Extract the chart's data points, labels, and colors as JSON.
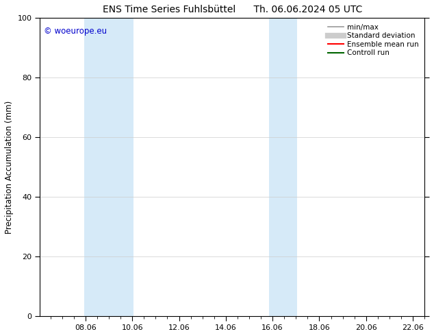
{
  "title_left": "ENS Time Series Fuhlsbüttel",
  "title_right": "Th. 06.06.2024 05 UTC",
  "ylabel": "Precipitation Accumulation (mm)",
  "watermark": "© woeurope.eu",
  "watermark_color": "#0000cc",
  "ylim": [
    0,
    100
  ],
  "xlim_start": 6.05,
  "xlim_end": 22.5,
  "xticks": [
    8.0,
    10.0,
    12.0,
    14.0,
    16.0,
    18.0,
    20.0,
    22.0
  ],
  "xticklabels": [
    "08.06",
    "10.06",
    "12.06",
    "14.06",
    "16.06",
    "18.06",
    "20.06",
    "22.06"
  ],
  "yticks": [
    0,
    20,
    40,
    60,
    80,
    100
  ],
  "shaded_bands": [
    {
      "x_start": 7.95,
      "x_end": 10.05,
      "color": "#d6eaf8"
    },
    {
      "x_start": 15.85,
      "x_end": 17.05,
      "color": "#d6eaf8"
    }
  ],
  "legend_entries": [
    {
      "label": "min/max",
      "color": "#999999",
      "linewidth": 1.2,
      "linestyle": "-"
    },
    {
      "label": "Standard deviation",
      "color": "#cccccc",
      "linewidth": 6,
      "linestyle": "-"
    },
    {
      "label": "Ensemble mean run",
      "color": "#ff0000",
      "linewidth": 1.5,
      "linestyle": "-"
    },
    {
      "label": "Controll run",
      "color": "#006400",
      "linewidth": 1.5,
      "linestyle": "-"
    }
  ],
  "bg_color": "#ffffff",
  "grid_color": "#cccccc",
  "font_size_title": 10,
  "font_size_labels": 8.5,
  "font_size_ticks": 8,
  "font_size_legend": 7.5,
  "font_size_watermark": 8.5
}
